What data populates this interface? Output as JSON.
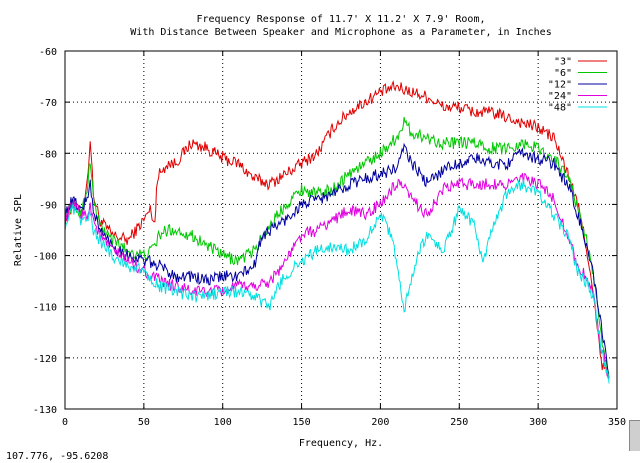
{
  "chart_data": {
    "type": "line",
    "title": [
      "Frequency Response of 11.7' X 11.2' X 7.9' Room,",
      "With Distance Between Speaker and Microphone as a Parameter, in Inches"
    ],
    "xlabel": "Frequency, Hz.",
    "ylabel": "Relative SPL",
    "xlim": [
      0,
      350
    ],
    "ylim": [
      -130,
      -60
    ],
    "xticks": [
      0,
      50,
      100,
      150,
      200,
      250,
      300,
      350
    ],
    "yticks": [
      -130,
      -120,
      -110,
      -100,
      -90,
      -80,
      -70,
      -60
    ],
    "grid": true,
    "legend_position": "top-right",
    "series": [
      {
        "name": "\"3\"",
        "color": "#e00000",
        "x": [
          0,
          5,
          10,
          14,
          16,
          18,
          22,
          30,
          40,
          50,
          54,
          57,
          58,
          60,
          65,
          70,
          80,
          90,
          100,
          110,
          120,
          130,
          140,
          150,
          160,
          170,
          180,
          190,
          200,
          210,
          220,
          230,
          240,
          250,
          260,
          270,
          280,
          290,
          300,
          310,
          320,
          325,
          330,
          335,
          340,
          345
        ],
        "y": [
          -93,
          -90,
          -92,
          -86,
          -77,
          -88,
          -93,
          -96,
          -97,
          -93,
          -91,
          -94,
          -86,
          -84,
          -82,
          -82,
          -78,
          -79,
          -81,
          -82,
          -85,
          -86,
          -84,
          -82,
          -80,
          -75,
          -72,
          -70,
          -68,
          -67,
          -68,
          -69,
          -71,
          -71,
          -72,
          -72,
          -73,
          -74,
          -75,
          -77,
          -85,
          -90,
          -97,
          -108,
          -121,
          -124
        ]
      },
      {
        "name": "\"6\"",
        "color": "#00c800",
        "x": [
          0,
          5,
          10,
          14,
          16,
          18,
          22,
          30,
          40,
          50,
          55,
          60,
          65,
          70,
          80,
          90,
          100,
          110,
          120,
          130,
          140,
          150,
          160,
          170,
          180,
          190,
          200,
          210,
          215,
          220,
          230,
          240,
          250,
          260,
          270,
          280,
          290,
          300,
          310,
          320,
          325,
          330,
          335,
          340,
          345
        ],
        "y": [
          -92,
          -90,
          -92,
          -87,
          -81,
          -89,
          -94,
          -97,
          -99,
          -100,
          -99,
          -96,
          -95,
          -95,
          -96,
          -98,
          -100,
          -101,
          -99,
          -94,
          -90,
          -87,
          -88,
          -87,
          -84,
          -82,
          -80,
          -77,
          -74,
          -76,
          -77,
          -78,
          -78,
          -78,
          -79,
          -79,
          -78,
          -79,
          -81,
          -85,
          -91,
          -96,
          -104,
          -116,
          -124
        ]
      },
      {
        "name": "\"12\"",
        "color": "#0000a0",
        "x": [
          0,
          5,
          10,
          14,
          16,
          18,
          22,
          30,
          40,
          50,
          60,
          70,
          80,
          90,
          100,
          110,
          120,
          125,
          130,
          140,
          150,
          160,
          170,
          180,
          190,
          200,
          210,
          215,
          220,
          230,
          240,
          250,
          260,
          270,
          280,
          290,
          300,
          310,
          320,
          325,
          330,
          335,
          340,
          345
        ],
        "y": [
          -92,
          -89,
          -91,
          -89,
          -86,
          -91,
          -95,
          -98,
          -100,
          -101,
          -102,
          -104,
          -104,
          -105,
          -104,
          -104,
          -102,
          -96,
          -95,
          -93,
          -90,
          -89,
          -88,
          -86,
          -85,
          -84,
          -83,
          -79,
          -82,
          -86,
          -83,
          -82,
          -81,
          -82,
          -82,
          -80,
          -81,
          -82,
          -87,
          -92,
          -97,
          -104,
          -114,
          -123
        ]
      },
      {
        "name": "\"24\"",
        "color": "#e000e0",
        "x": [
          0,
          5,
          10,
          14,
          16,
          18,
          22,
          30,
          40,
          50,
          60,
          70,
          80,
          90,
          100,
          110,
          120,
          130,
          140,
          150,
          160,
          170,
          180,
          190,
          200,
          210,
          215,
          220,
          230,
          240,
          250,
          260,
          270,
          280,
          290,
          300,
          310,
          320,
          325,
          330,
          335,
          340,
          345
        ],
        "y": [
          -93,
          -90,
          -92,
          -92,
          -90,
          -93,
          -96,
          -99,
          -101,
          -103,
          -105,
          -106,
          -107,
          -107,
          -107,
          -106,
          -106,
          -105,
          -101,
          -96,
          -95,
          -93,
          -91,
          -92,
          -90,
          -86,
          -87,
          -89,
          -92,
          -87,
          -86,
          -86,
          -86,
          -86,
          -85,
          -86,
          -89,
          -97,
          -102,
          -104,
          -108,
          -118,
          -124
        ]
      },
      {
        "name": "\"48\"",
        "color": "#00e0e0",
        "x": [
          0,
          5,
          10,
          14,
          16,
          18,
          22,
          30,
          40,
          50,
          60,
          70,
          80,
          90,
          100,
          110,
          120,
          130,
          135,
          140,
          150,
          160,
          170,
          180,
          190,
          200,
          205,
          210,
          215,
          220,
          225,
          230,
          240,
          250,
          260,
          265,
          270,
          280,
          290,
          300,
          310,
          320,
          325,
          330,
          335,
          340,
          345
        ],
        "y": [
          -94,
          -91,
          -93,
          -93,
          -92,
          -95,
          -97,
          -100,
          -102,
          -103,
          -106,
          -107,
          -108,
          -108,
          -107,
          -107,
          -108,
          -110,
          -106,
          -104,
          -101,
          -99,
          -98,
          -99,
          -97,
          -92,
          -95,
          -100,
          -111,
          -104,
          -99,
          -96,
          -99,
          -91,
          -94,
          -102,
          -96,
          -88,
          -86,
          -88,
          -92,
          -97,
          -103,
          -105,
          -108,
          -118,
          -125
        ]
      }
    ]
  },
  "status": {
    "coordinates": "107.776, -95.6208"
  }
}
